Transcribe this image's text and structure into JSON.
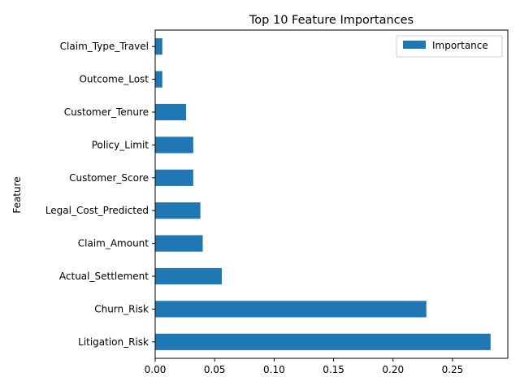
{
  "chart_data": {
    "type": "bar",
    "orientation": "horizontal",
    "title": "Top 10 Feature Importances",
    "xlabel": "",
    "ylabel": "Feature",
    "categories": [
      "Claim_Type_Travel",
      "Outcome_Lost",
      "Customer_Tenure",
      "Policy_Limit",
      "Customer_Score",
      "Legal_Cost_Predicted",
      "Claim_Amount",
      "Actual_Settlement",
      "Churn_Risk",
      "Litigation_Risk"
    ],
    "series": [
      {
        "name": "Importance",
        "values": [
          0.006,
          0.006,
          0.026,
          0.032,
          0.032,
          0.038,
          0.04,
          0.056,
          0.228,
          0.282
        ]
      }
    ],
    "xlim": [
      0,
      0.2965
    ],
    "xticks": [
      0.0,
      0.05,
      0.1,
      0.15,
      0.2,
      0.25
    ],
    "xtick_labels": [
      "0.00",
      "0.05",
      "0.10",
      "0.15",
      "0.20",
      "0.25"
    ],
    "bar_color": "#1f77b4",
    "grid": false,
    "legend_position": "top-right"
  }
}
